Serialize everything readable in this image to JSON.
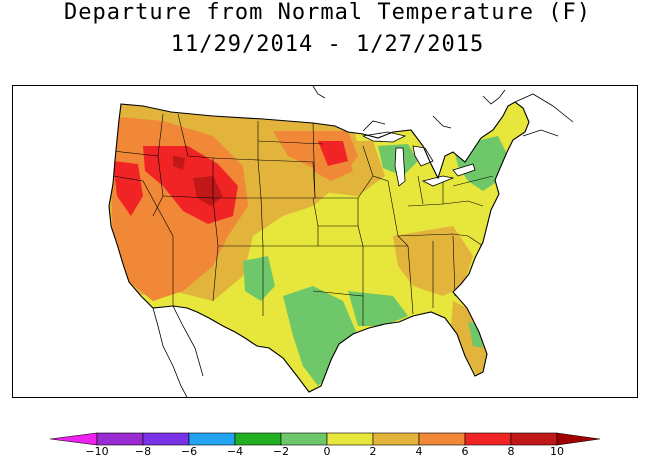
{
  "title": {
    "line1": "Departure from Normal Temperature (F)",
    "line2": "11/29/2014 - 1/27/2015"
  },
  "legend": {
    "ticks": [
      "-10",
      "-8",
      "-6",
      "-4",
      "-2",
      "0",
      "2",
      "4",
      "6",
      "8",
      "10"
    ],
    "bin_colors": [
      "#ee22ee",
      "#9a2bd2",
      "#7a32e6",
      "#24a4f0",
      "#22b022",
      "#6ec86a",
      "#e6e63c",
      "#e2b43c",
      "#f08838",
      "#f02424",
      "#c01818",
      "#a00000"
    ]
  },
  "map": {
    "region": "Contiguous United States",
    "colors": {
      "land_base": "#e6e63c",
      "warm_4_6": "#f08838",
      "warm_2_4": "#e2b43c",
      "warm_6_8": "#f02424",
      "warm_8_10": "#c01818",
      "cool_m2_0": "#6ec86a",
      "boundary": "#000000"
    }
  }
}
